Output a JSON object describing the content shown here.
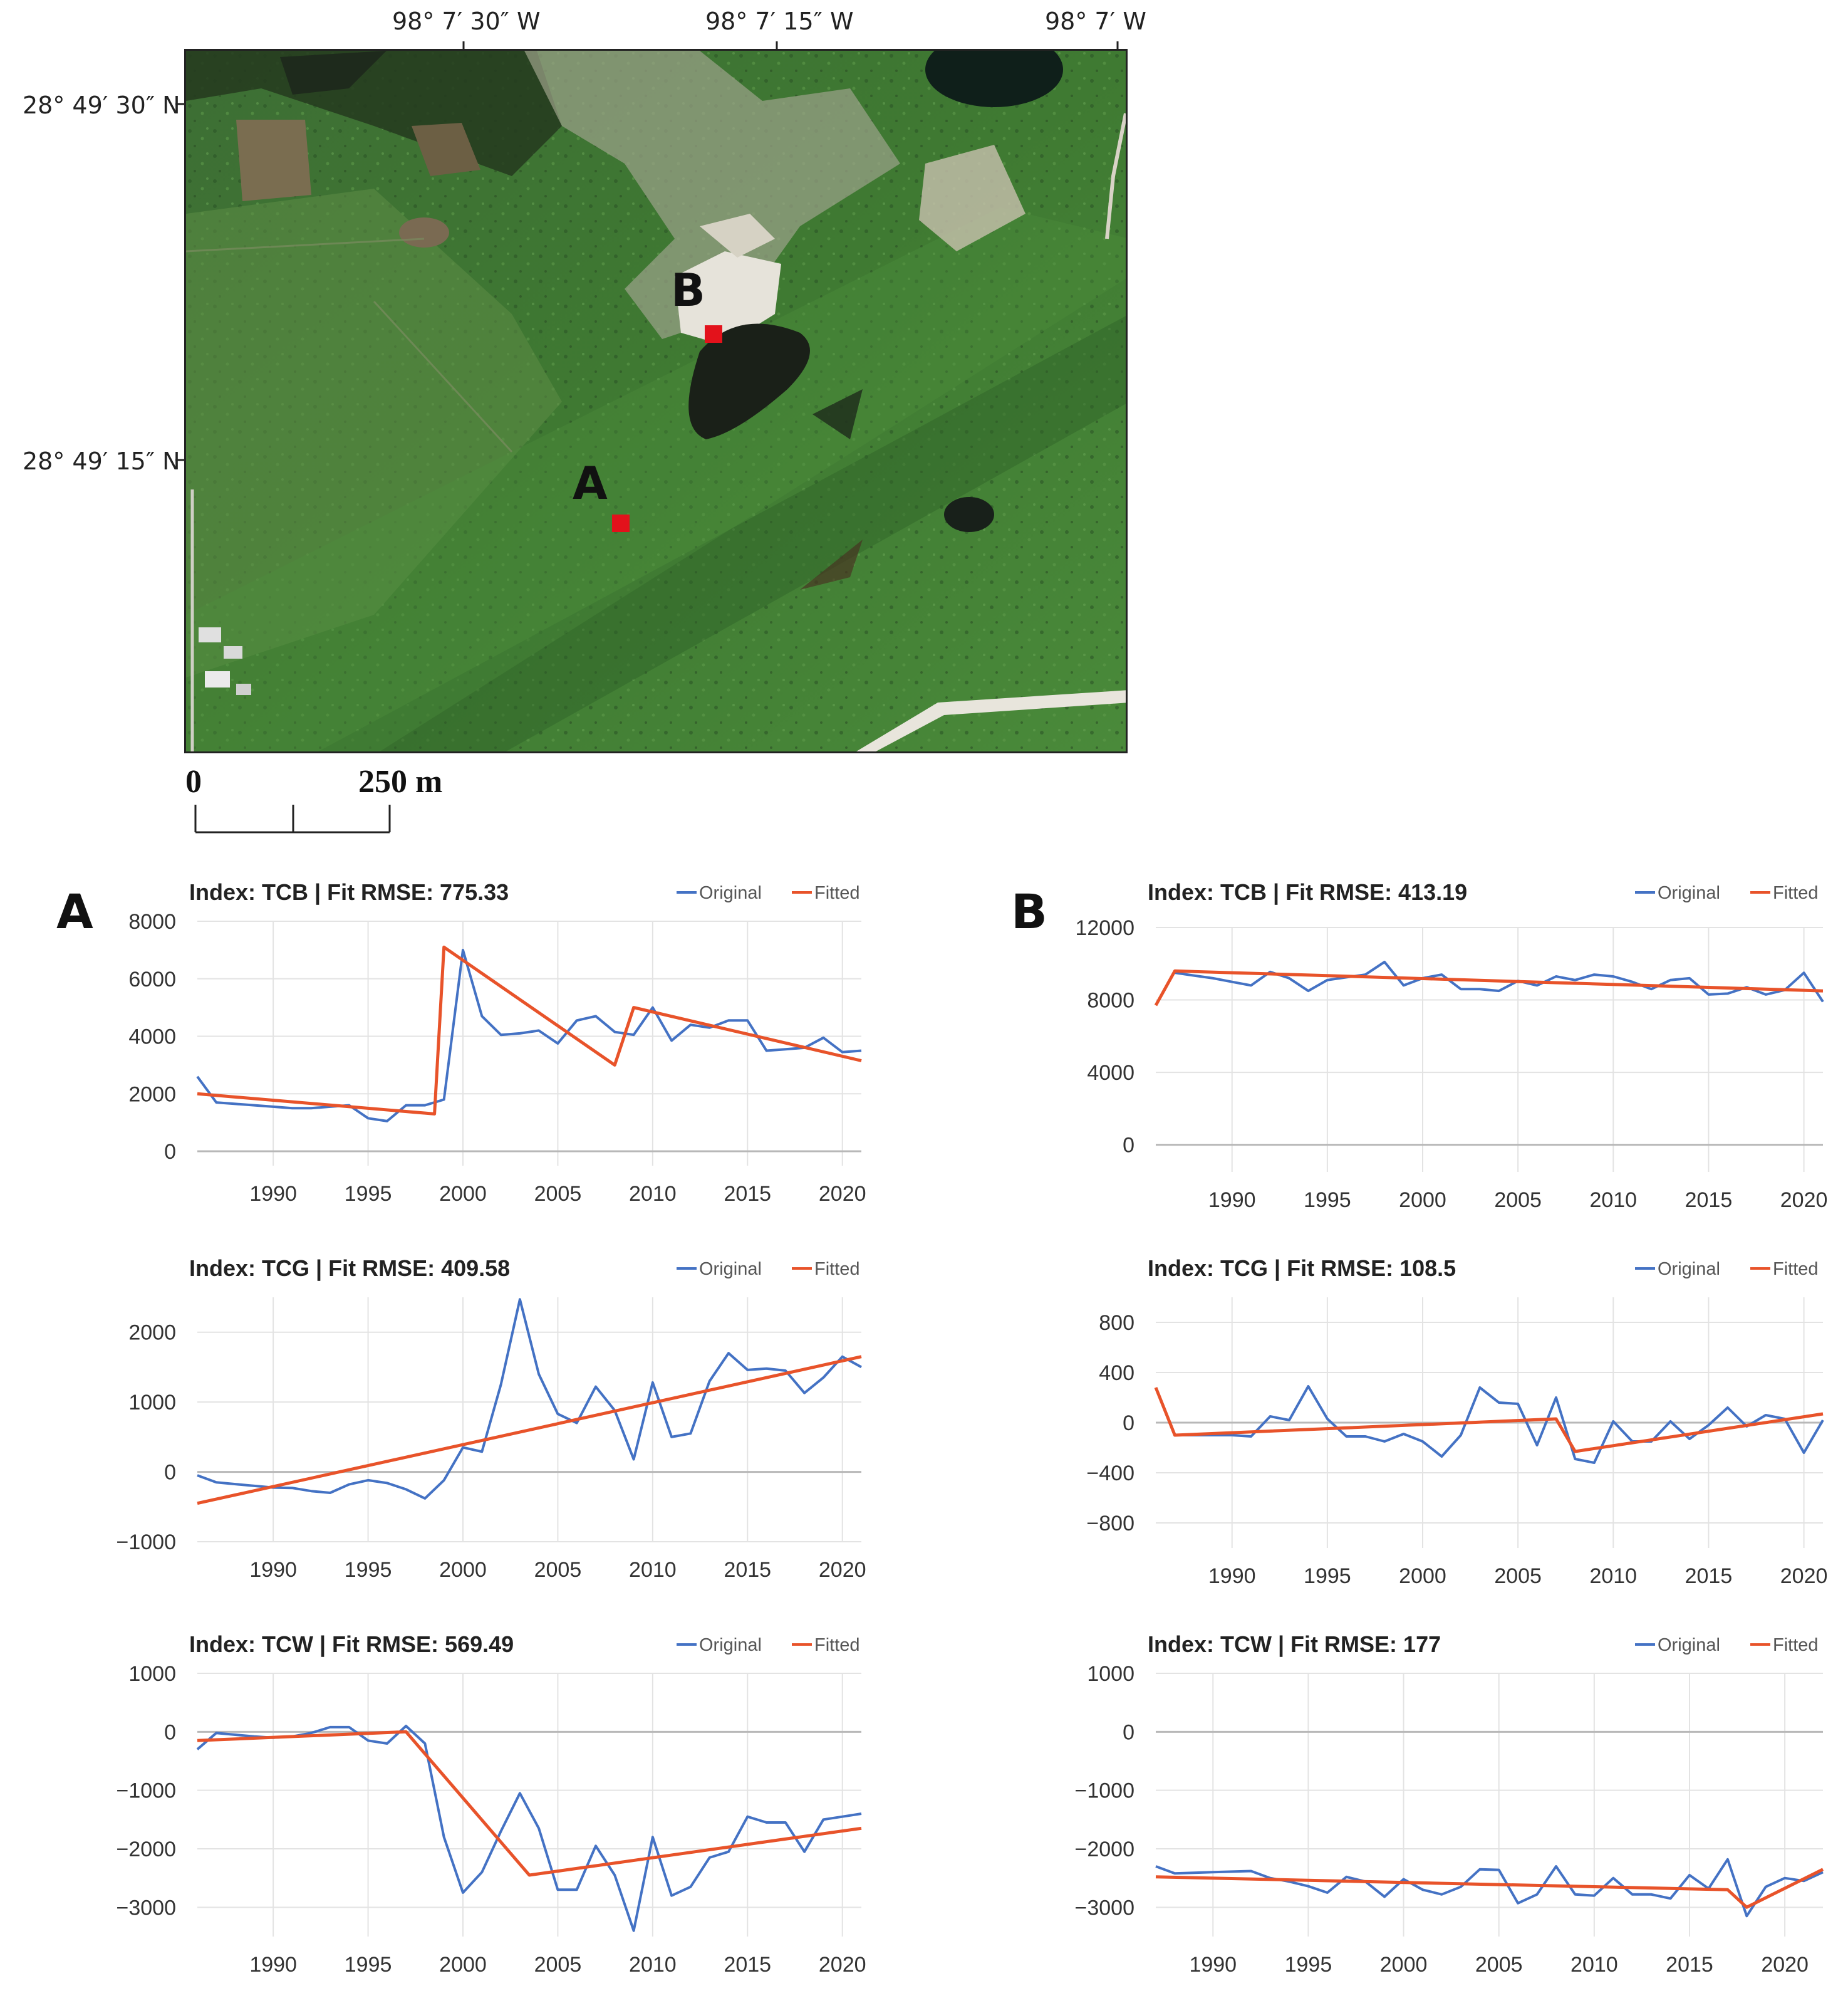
{
  "map": {
    "lon_labels": [
      "98° 7′ 30″ W",
      "98° 7′ 15″ W",
      "98° 7′ W"
    ],
    "lat_labels": [
      "28° 49′ 30″ N",
      "28° 49′ 15″ N"
    ],
    "sites": [
      {
        "label": "A"
      },
      {
        "label": "B"
      }
    ],
    "scale": {
      "zero": "0",
      "distance": "250 m"
    },
    "colors": {
      "marker": "#e3121b",
      "vegetation": "#3f7a32",
      "bare_ground": "#e6e3da",
      "water": "#1a2018"
    }
  },
  "panels": {
    "a_label": "A",
    "b_label": "B"
  },
  "colors": {
    "original": "#4472c4",
    "fitted": "#e8532a",
    "grid": "#e3e3e3",
    "zero_line": "#b8b8b8"
  },
  "chart_data": [
    {
      "id": "A-TCB",
      "type": "line",
      "title": "Index: TCB | Fit RMSE: 775.33",
      "xlim": [
        1986,
        2021
      ],
      "ylim": [
        -500,
        8000
      ],
      "yticks": [
        0,
        2000,
        4000,
        6000,
        8000
      ],
      "xticks": [
        1990,
        1995,
        2000,
        2005,
        2010,
        2015,
        2020
      ],
      "legend": [
        "Original",
        "Fitted"
      ],
      "legend_position": "top-right",
      "series": [
        {
          "name": "Original",
          "x": [
            1986,
            1987,
            1988,
            1989,
            1990,
            1991,
            1992,
            1993,
            1994,
            1995,
            1996,
            1997,
            1998,
            1999,
            2000,
            2001,
            2002,
            2003,
            2004,
            2005,
            2006,
            2007,
            2008,
            2009,
            2010,
            2011,
            2012,
            2013,
            2014,
            2015,
            2016,
            2017,
            2018,
            2019,
            2020,
            2021
          ],
          "y": [
            2600,
            1700,
            1650,
            1600,
            1550,
            1500,
            1500,
            1550,
            1600,
            1150,
            1050,
            1600,
            1600,
            1800,
            7000,
            4700,
            4050,
            4100,
            4200,
            3750,
            4550,
            4700,
            4150,
            4050,
            5000,
            3850,
            4400,
            4300,
            4550,
            4550,
            3500,
            3550,
            3600,
            3950,
            3450,
            3500
          ]
        },
        {
          "name": "Fitted",
          "x": [
            1986,
            1998.5,
            1999,
            2008,
            2009,
            2021
          ],
          "y": [
            2000,
            1300,
            7100,
            3000,
            5000,
            3150
          ]
        }
      ]
    },
    {
      "id": "A-TCG",
      "type": "line",
      "title": "Index: TCG | Fit RMSE: 409.58",
      "xlim": [
        1986,
        2021
      ],
      "ylim": [
        -1000,
        2500
      ],
      "yticks": [
        -1000,
        0,
        1000,
        2000
      ],
      "xticks": [
        1990,
        1995,
        2000,
        2005,
        2010,
        2015,
        2020
      ],
      "legend": [
        "Original",
        "Fitted"
      ],
      "legend_position": "top-right",
      "series": [
        {
          "name": "Original",
          "x": [
            1986,
            1987,
            1988,
            1989,
            1990,
            1991,
            1992,
            1993,
            1994,
            1995,
            1996,
            1997,
            1998,
            1999,
            2000,
            2001,
            2002,
            2003,
            2004,
            2005,
            2006,
            2007,
            2008,
            2009,
            2010,
            2011,
            2012,
            2013,
            2014,
            2015,
            2016,
            2017,
            2018,
            2019,
            2020,
            2021
          ],
          "y": [
            -50,
            -150,
            -175,
            -200,
            -225,
            -230,
            -275,
            -300,
            -180,
            -120,
            -160,
            -250,
            -380,
            -120,
            350,
            290,
            1250,
            2470,
            1400,
            830,
            700,
            1220,
            880,
            180,
            1280,
            500,
            550,
            1300,
            1700,
            1460,
            1480,
            1450,
            1130,
            1350,
            1650,
            1500
          ]
        },
        {
          "name": "Fitted",
          "x": [
            1986,
            2021
          ],
          "y": [
            -450,
            1650
          ]
        }
      ]
    },
    {
      "id": "A-TCW",
      "type": "line",
      "title": "Index: TCW | Fit RMSE: 569.49",
      "xlim": [
        1986,
        2021
      ],
      "ylim": [
        -3500,
        1000
      ],
      "yticks": [
        -3000,
        -2000,
        -1000,
        0,
        1000
      ],
      "xticks": [
        1990,
        1995,
        2000,
        2005,
        2010,
        2015,
        2020
      ],
      "legend": [
        "Original",
        "Fitted"
      ],
      "legend_position": "top-right",
      "series": [
        {
          "name": "Original",
          "x": [
            1986,
            1987,
            1988,
            1989,
            1990,
            1991,
            1992,
            1993,
            1994,
            1995,
            1996,
            1997,
            1998,
            1999,
            2000,
            2001,
            2002,
            2003,
            2004,
            2005,
            2006,
            2007,
            2008,
            2009,
            2010,
            2011,
            2012,
            2013,
            2014,
            2015,
            2016,
            2017,
            2018,
            2019,
            2020,
            2021
          ],
          "y": [
            -300,
            -20,
            -50,
            -80,
            -100,
            -80,
            -20,
            80,
            80,
            -150,
            -200,
            100,
            -200,
            -1800,
            -2750,
            -2400,
            -1700,
            -1050,
            -1650,
            -2700,
            -2700,
            -1950,
            -2450,
            -3400,
            -1800,
            -2800,
            -2650,
            -2150,
            -2050,
            -1450,
            -1550,
            -1550,
            -2050,
            -1500,
            -1450,
            -1400
          ]
        },
        {
          "name": "Fitted",
          "x": [
            1986,
            1997,
            2003.5,
            2021
          ],
          "y": [
            -150,
            0,
            -2450,
            -1650
          ]
        }
      ]
    },
    {
      "id": "B-TCB",
      "type": "line",
      "title": "Index: TCB | Fit RMSE: 413.19",
      "xlim": [
        1986,
        2021
      ],
      "ylim": [
        -1500,
        12000
      ],
      "yticks": [
        0,
        4000,
        8000,
        12000
      ],
      "xticks": [
        1990,
        1995,
        2000,
        2005,
        2010,
        2015,
        2020
      ],
      "legend": [
        "Original",
        "Fitted"
      ],
      "legend_position": "top-right",
      "series": [
        {
          "name": "Original",
          "x": [
            1987,
            1988,
            1989,
            1990,
            1991,
            1992,
            1993,
            1994,
            1995,
            1996,
            1997,
            1998,
            1999,
            2000,
            2001,
            2002,
            2003,
            2004,
            2005,
            2006,
            2007,
            2008,
            2009,
            2010,
            2011,
            2012,
            2013,
            2014,
            2015,
            2016,
            2017,
            2018,
            2019,
            2020,
            2021
          ],
          "y": [
            9500,
            9350,
            9200,
            9000,
            8800,
            9550,
            9200,
            8500,
            9100,
            9250,
            9400,
            10100,
            8800,
            9200,
            9400,
            8600,
            8600,
            8500,
            9050,
            8800,
            9300,
            9100,
            9400,
            9300,
            9000,
            8600,
            9100,
            9200,
            8300,
            8350,
            8700,
            8300,
            8550,
            9500,
            7900
          ]
        },
        {
          "name": "Fitted",
          "x": [
            1986,
            1987,
            2021
          ],
          "y": [
            7700,
            9600,
            8500
          ]
        }
      ]
    },
    {
      "id": "B-TCG",
      "type": "line",
      "title": "Index: TCG | Fit RMSE: 108.5",
      "xlim": [
        1986,
        2021
      ],
      "ylim": [
        -1000,
        1000
      ],
      "yticks": [
        -800,
        -400,
        0,
        400,
        800
      ],
      "xticks": [
        1990,
        1995,
        2000,
        2005,
        2010,
        2015,
        2020
      ],
      "legend": [
        "Original",
        "Fitted"
      ],
      "legend_position": "top-right",
      "series": [
        {
          "name": "Original",
          "x": [
            1987,
            1988,
            1989,
            1990,
            1991,
            1992,
            1993,
            1994,
            1995,
            1996,
            1997,
            1998,
            1999,
            2000,
            2001,
            2002,
            2003,
            2004,
            2005,
            2006,
            2007,
            2008,
            2009,
            2010,
            2011,
            2012,
            2013,
            2014,
            2015,
            2016,
            2017,
            2018,
            2019,
            2020,
            2021
          ],
          "y": [
            -100,
            -100,
            -100,
            -100,
            -110,
            50,
            20,
            290,
            30,
            -110,
            -110,
            -150,
            -90,
            -150,
            -270,
            -100,
            280,
            160,
            150,
            -180,
            200,
            -290,
            -320,
            10,
            -150,
            -150,
            10,
            -130,
            -20,
            120,
            -30,
            60,
            30,
            -240,
            20
          ]
        },
        {
          "name": "Fitted",
          "x": [
            1986,
            1987,
            2007,
            2008,
            2021
          ],
          "y": [
            280,
            -100,
            30,
            -230,
            70
          ]
        }
      ]
    },
    {
      "id": "B-TCW",
      "type": "line",
      "title": "Index: TCW | Fit RMSE: 177",
      "xlim": [
        1987,
        2022
      ],
      "ylim": [
        -3500,
        1000
      ],
      "yticks": [
        -3000,
        -2000,
        -1000,
        0,
        1000
      ],
      "xticks": [
        1990,
        1995,
        2000,
        2005,
        2010,
        2015,
        2020
      ],
      "legend": [
        "Original",
        "Fitted"
      ],
      "legend_position": "top-right",
      "series": [
        {
          "name": "Original",
          "x": [
            1987,
            1988,
            1989,
            1990,
            1991,
            1992,
            1993,
            1994,
            1995,
            1996,
            1997,
            1998,
            1999,
            2000,
            2001,
            2002,
            2003,
            2004,
            2005,
            2006,
            2007,
            2008,
            2009,
            2010,
            2011,
            2012,
            2013,
            2014,
            2015,
            2016,
            2017,
            2018,
            2019,
            2020,
            2021,
            2022
          ],
          "y": [
            -2300,
            -2420,
            -2410,
            -2400,
            -2390,
            -2380,
            -2500,
            -2560,
            -2640,
            -2750,
            -2480,
            -2560,
            -2820,
            -2520,
            -2700,
            -2780,
            -2650,
            -2350,
            -2360,
            -2930,
            -2780,
            -2300,
            -2780,
            -2800,
            -2500,
            -2780,
            -2780,
            -2850,
            -2450,
            -2680,
            -2180,
            -3150,
            -2650,
            -2500,
            -2550,
            -2400
          ]
        },
        {
          "name": "Fitted",
          "x": [
            1987,
            2017,
            2018,
            2022
          ],
          "y": [
            -2480,
            -2700,
            -3000,
            -2350
          ]
        }
      ]
    }
  ]
}
